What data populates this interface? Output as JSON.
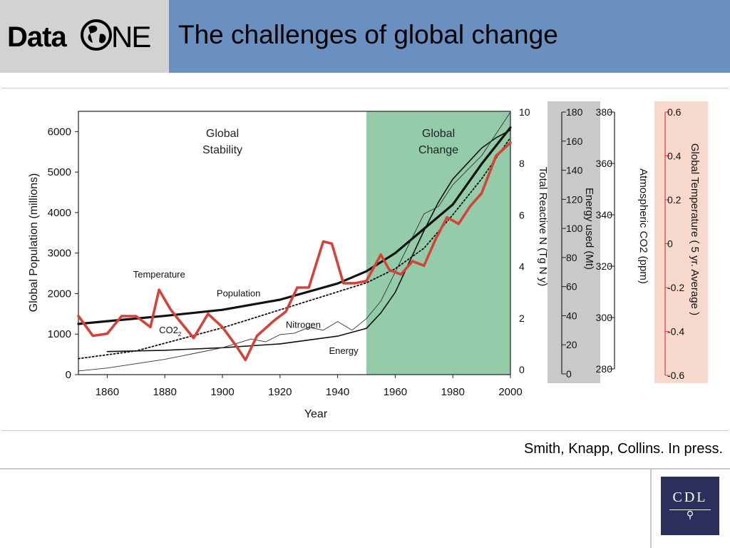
{
  "header": {
    "logo_text": "Data",
    "logo_suffix": "NE",
    "title": "The challenges of global change"
  },
  "citation": "Smith, Knapp, Collins. In press.",
  "footer_logo": {
    "text": "CDL"
  },
  "colors": {
    "header_band": "#6a8fc1",
    "logo_box": "#d2d2d2",
    "change_region": "#94cba9",
    "temperature": "#d8413a",
    "energy_panel": "#c9c9c7",
    "temperature_panel": "#f6d9cc",
    "cdl_logo": "#2b2f5c"
  },
  "chart_data": {
    "type": "line",
    "xlabel": "Year",
    "xlim": [
      1850,
      2000
    ],
    "x_ticks": [
      "1860",
      "1880",
      "1900",
      "1920",
      "1940",
      "1960",
      "1980",
      "2000"
    ],
    "regions": [
      {
        "label": "Global Stability",
        "from": 1850,
        "to": 1950
      },
      {
        "label": "Global Change",
        "from": 1950,
        "to": 2000
      }
    ],
    "axes": [
      {
        "id": "population",
        "label": "Global Population (millions)",
        "side": "left",
        "ylim": [
          0,
          6500
        ],
        "ticks": [
          "0",
          "1000",
          "2000",
          "3000",
          "4000",
          "5000",
          "6000"
        ]
      },
      {
        "id": "nitrogen",
        "label": "Total Reactive N (Tg N y)",
        "side": "right",
        "ylim": [
          0,
          10
        ],
        "ticks": [
          "0",
          "2",
          "4",
          "6",
          "8",
          "10"
        ]
      },
      {
        "id": "energy",
        "label": "Energy used (Mt)",
        "side": "right",
        "ylim": [
          0,
          180
        ],
        "ticks": [
          "0",
          "20",
          "40",
          "60",
          "80",
          "100",
          "120",
          "140",
          "160",
          "180"
        ]
      },
      {
        "id": "co2",
        "label": "Atmospheric CO2 (ppm)",
        "side": "right",
        "ylim": [
          280,
          380
        ],
        "ticks": [
          "280",
          "300",
          "320",
          "340",
          "360",
          "380"
        ]
      },
      {
        "id": "temperature",
        "label": "Global Temperature ( 5 yr. Average )",
        "side": "right",
        "ylim": [
          -0.6,
          0.6
        ],
        "ticks": [
          "-0.6",
          "-0.4",
          "-0.2",
          "0",
          "0.2",
          "0.4",
          "0.6"
        ]
      }
    ],
    "series": [
      {
        "name": "Population",
        "axis": "population",
        "style": "thick-black",
        "x": [
          1850,
          1860,
          1880,
          1900,
          1920,
          1940,
          1950,
          1960,
          1970,
          1980,
          1990,
          2000
        ],
        "y": [
          1250,
          1320,
          1450,
          1600,
          1850,
          2250,
          2550,
          3000,
          3600,
          4200,
          5200,
          6100
        ]
      },
      {
        "name": "CO2",
        "axis": "co2",
        "style": "dotted-black",
        "x": [
          1850,
          1860,
          1870,
          1880,
          1890,
          1900,
          1910,
          1920,
          1930,
          1940,
          1950,
          1960,
          1970,
          1980,
          1990,
          2000
        ],
        "y": [
          284,
          285.5,
          287,
          290,
          293,
          296,
          299.5,
          303,
          306.5,
          310,
          313.5,
          319,
          327,
          340,
          354,
          370
        ]
      },
      {
        "name": "Nitrogen",
        "axis": "nitrogen",
        "style": "black",
        "x": [
          1860,
          1880,
          1900,
          1920,
          1940,
          1950,
          1955,
          1960,
          1965,
          1970,
          1975,
          1980,
          1985,
          1990,
          1995,
          2000
        ],
        "y": [
          0.7,
          0.75,
          0.85,
          1.0,
          1.3,
          1.6,
          2.2,
          3.0,
          4.2,
          5.4,
          6.5,
          7.4,
          8.0,
          8.6,
          9.0,
          9.3
        ]
      },
      {
        "name": "Energy",
        "axis": "energy",
        "style": "thin-black",
        "x": [
          1850,
          1860,
          1870,
          1880,
          1890,
          1900,
          1910,
          1915,
          1920,
          1925,
          1930,
          1935,
          1940,
          1945,
          1950,
          1955,
          1960,
          1965,
          1970,
          1975,
          1980,
          1985,
          1990,
          1995,
          2000
        ],
        "y": [
          2,
          4,
          7,
          10,
          14,
          18,
          24,
          22,
          27,
          28,
          32,
          30,
          36,
          30,
          38,
          50,
          70,
          90,
          110,
          115,
          130,
          140,
          150,
          165,
          180
        ]
      },
      {
        "name": "Temperature",
        "axis": "temperature",
        "style": "thick-red",
        "x": [
          1850,
          1855,
          1860,
          1865,
          1870,
          1875,
          1878,
          1882,
          1885,
          1890,
          1895,
          1900,
          1905,
          1908,
          1912,
          1918,
          1922,
          1926,
          1930,
          1935,
          1938,
          1942,
          1946,
          1950,
          1955,
          1958,
          1962,
          1966,
          1970,
          1974,
          1978,
          1982,
          1986,
          1990,
          1995,
          2000
        ],
        "y": [
          -0.33,
          -0.42,
          -0.41,
          -0.33,
          -0.33,
          -0.38,
          -0.21,
          -0.3,
          -0.35,
          -0.43,
          -0.32,
          -0.38,
          -0.47,
          -0.53,
          -0.42,
          -0.35,
          -0.31,
          -0.2,
          -0.2,
          0.01,
          -0.0,
          -0.18,
          -0.18,
          -0.17,
          -0.05,
          -0.12,
          -0.14,
          -0.08,
          -0.1,
          0.02,
          0.12,
          0.09,
          0.17,
          0.23,
          0.4,
          0.46
        ]
      }
    ],
    "annotations": [
      {
        "text": "Temperature",
        "x": 1869,
        "y": 2400,
        "axis": "population"
      },
      {
        "text": "Population",
        "x": 1898,
        "y": 1930,
        "axis": "population"
      },
      {
        "text": "CO2",
        "x": 1878,
        "y": 1020,
        "axis": "population",
        "sub": "2"
      },
      {
        "text": "Nitrogen",
        "x": 1922,
        "y": 1150,
        "axis": "population"
      },
      {
        "text": "Energy",
        "x": 1937,
        "y": 510,
        "axis": "population"
      }
    ]
  }
}
